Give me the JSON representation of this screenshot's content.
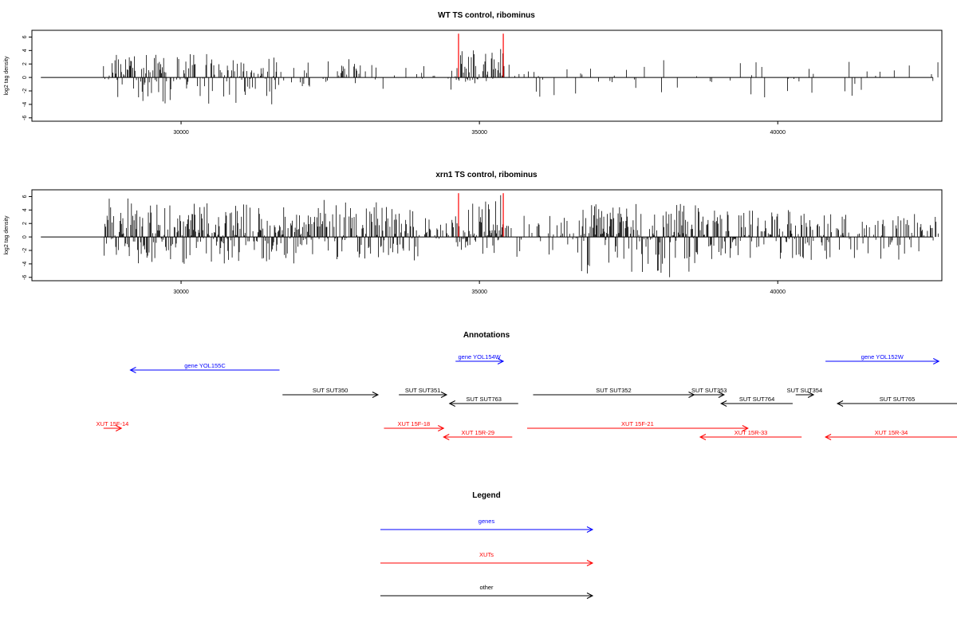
{
  "chart_data": [
    {
      "type": "bar",
      "panel": "wt",
      "title": "WT TS control, ribominus",
      "ylabel": "log2 tag density",
      "xlim": [
        27500,
        42750
      ],
      "ylim": [
        -6.5,
        7
      ],
      "yticks": [
        6,
        4,
        2,
        0,
        -2,
        -4,
        -6
      ],
      "xticks": [
        30000,
        35000,
        40000
      ],
      "highlight_x": [
        34650,
        35400
      ],
      "highlight_color": "#ff0000",
      "series_color": "#000000",
      "segments": [
        {
          "from": 28700,
          "to": 31600,
          "density": 0.7,
          "max_pos": 3.5,
          "max_neg": 4.0
        },
        {
          "from": 31600,
          "to": 32500,
          "density": 0.3,
          "max_pos": 2.5,
          "max_neg": 1.5
        },
        {
          "from": 32500,
          "to": 33300,
          "density": 0.35,
          "max_pos": 3.0,
          "max_neg": 1.0
        },
        {
          "from": 33300,
          "to": 34600,
          "density": 0.12,
          "max_pos": 2.0,
          "max_neg": 2.0
        },
        {
          "from": 34600,
          "to": 35400,
          "density": 0.75,
          "max_pos": 4.5,
          "max_neg": 1.0
        },
        {
          "from": 35400,
          "to": 37500,
          "density": 0.15,
          "max_pos": 2.0,
          "max_neg": 3.0
        },
        {
          "from": 37500,
          "to": 42700,
          "density": 0.1,
          "max_pos": 2.8,
          "max_neg": 3.0
        }
      ]
    },
    {
      "type": "bar",
      "panel": "xrn1",
      "title": "xrn1 TS control, ribominus",
      "ylabel": "log2 tag density",
      "xlim": [
        27500,
        42750
      ],
      "ylim": [
        -6.5,
        7
      ],
      "yticks": [
        6,
        4,
        2,
        0,
        -2,
        -4,
        -6
      ],
      "xticks": [
        30000,
        35000,
        40000
      ],
      "highlight_x": [
        34650,
        35400
      ],
      "highlight_color": "#ff0000",
      "series_color": "#000000",
      "segments": [
        {
          "from": 28700,
          "to": 29200,
          "density": 0.9,
          "max_pos": 5.8,
          "max_neg": 4.5
        },
        {
          "from": 29200,
          "to": 32000,
          "density": 0.95,
          "max_pos": 5.0,
          "max_neg": 4.0
        },
        {
          "from": 32000,
          "to": 34000,
          "density": 0.85,
          "max_pos": 5.5,
          "max_neg": 3.5
        },
        {
          "from": 34000,
          "to": 34600,
          "density": 0.4,
          "max_pos": 3.0,
          "max_neg": 2.0
        },
        {
          "from": 34600,
          "to": 35400,
          "density": 0.95,
          "max_pos": 6.5,
          "max_neg": 2.5
        },
        {
          "from": 35400,
          "to": 36700,
          "density": 0.45,
          "max_pos": 3.5,
          "max_neg": 3.0
        },
        {
          "from": 36700,
          "to": 38700,
          "density": 0.95,
          "max_pos": 5.0,
          "max_neg": 6.0
        },
        {
          "from": 38700,
          "to": 40600,
          "density": 0.8,
          "max_pos": 4.0,
          "max_neg": 3.5
        },
        {
          "from": 40600,
          "to": 42700,
          "density": 0.55,
          "max_pos": 3.5,
          "max_neg": 3.5
        }
      ]
    },
    {
      "type": "annotation-track",
      "title": "Annotations",
      "xlim": [
        27500,
        42750
      ],
      "features": [
        {
          "label": "gene YOL155C",
          "start": 29150,
          "end": 31650,
          "dir": "-",
          "kind": "gene",
          "row": 1
        },
        {
          "label": "gene YOL154W",
          "start": 34600,
          "end": 35400,
          "dir": "+",
          "kind": "gene",
          "row": 0
        },
        {
          "label": "gene YOL152W",
          "start": 40800,
          "end": 42700,
          "dir": "+",
          "kind": "gene",
          "row": 0
        },
        {
          "label": "SUT SUT350",
          "start": 31700,
          "end": 33300,
          "dir": "+",
          "kind": "other",
          "row": 2
        },
        {
          "label": "SUT SUT351",
          "start": 33650,
          "end": 34450,
          "dir": "+",
          "kind": "other",
          "row": 2
        },
        {
          "label": "SUT SUT763",
          "start": 34500,
          "end": 35650,
          "dir": "-",
          "kind": "other",
          "row": 3
        },
        {
          "label": "SUT SUT352",
          "start": 35900,
          "end": 38600,
          "dir": "+",
          "kind": "other",
          "row": 2
        },
        {
          "label": "SUT SUT353",
          "start": 38600,
          "end": 39100,
          "dir": "+",
          "kind": "other",
          "row": 2
        },
        {
          "label": "SUT SUT764",
          "start": 39050,
          "end": 40250,
          "dir": "-",
          "kind": "other",
          "row": 3
        },
        {
          "label": "SUT SUT354",
          "start": 40300,
          "end": 40600,
          "dir": "+",
          "kind": "other",
          "row": 2
        },
        {
          "label": "SUT SUT765",
          "start": 41000,
          "end": 43050,
          "dir": "-",
          "kind": "other",
          "row": 3
        },
        {
          "label": "XUT 15F-14",
          "start": 28700,
          "end": 29000,
          "dir": "+",
          "kind": "xut",
          "row": 4
        },
        {
          "label": "XUT 15F-18",
          "start": 33400,
          "end": 34400,
          "dir": "+",
          "kind": "xut",
          "row": 4
        },
        {
          "label": "XUT 15R-29",
          "start": 34400,
          "end": 35550,
          "dir": "-",
          "kind": "xut",
          "row": 5
        },
        {
          "label": "XUT 15F-21",
          "start": 35800,
          "end": 39500,
          "dir": "+",
          "kind": "xut",
          "row": 4
        },
        {
          "label": "XUT 15R-33",
          "start": 38700,
          "end": 40400,
          "dir": "-",
          "kind": "xut",
          "row": 5
        },
        {
          "label": "XUT 15R-34",
          "start": 40800,
          "end": 43050,
          "dir": "-",
          "kind": "xut",
          "row": 5
        }
      ]
    },
    {
      "type": "legend",
      "title": "Legend",
      "entries": [
        {
          "label": "genes",
          "kind": "gene"
        },
        {
          "label": "XUTs",
          "kind": "xut"
        },
        {
          "label": "other",
          "kind": "other"
        }
      ]
    }
  ],
  "colors": {
    "gene": "#0000ff",
    "xut": "#ff0000",
    "other": "#000000",
    "axis": "#000000",
    "background": "#ffffff"
  }
}
